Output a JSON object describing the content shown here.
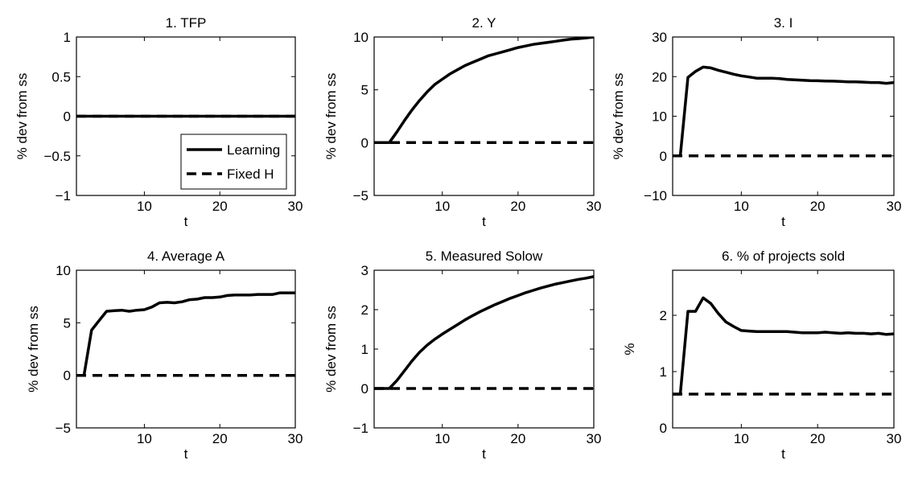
{
  "chart_data": [
    {
      "type": "line",
      "title": "1. TFP",
      "xlabel": "t",
      "ylabel": "% dev from ss",
      "xlim": [
        1,
        30
      ],
      "ylim": [
        -1,
        1
      ],
      "xticks": [
        10,
        20,
        30
      ],
      "yticks": [
        -1,
        -0.5,
        0,
        0.5,
        1
      ],
      "ytick_labels": [
        "−1",
        "−0.5",
        "0",
        "0.5",
        "1"
      ],
      "legend": {
        "position": "bottom-right",
        "entries": [
          "Learning",
          "Fixed H"
        ]
      },
      "series": [
        {
          "name": "Learning",
          "style": "solid",
          "x": [
            1,
            30
          ],
          "y": [
            0,
            0
          ]
        },
        {
          "name": "Fixed H",
          "style": "dashed",
          "x": [
            1,
            30
          ],
          "y": [
            0,
            0
          ]
        }
      ]
    },
    {
      "type": "line",
      "title": "2. Y",
      "xlabel": "t",
      "ylabel": "% dev from ss",
      "xlim": [
        1,
        30
      ],
      "ylim": [
        -5,
        10
      ],
      "xticks": [
        10,
        20,
        30
      ],
      "yticks": [
        -5,
        0,
        5,
        10
      ],
      "ytick_labels": [
        "−5",
        "0",
        "5",
        "10"
      ],
      "series": [
        {
          "name": "Learning",
          "style": "solid",
          "x": [
            1,
            2,
            3,
            4,
            5,
            6,
            7,
            8,
            9,
            10,
            11,
            12,
            13,
            14,
            15,
            16,
            17,
            18,
            19,
            20,
            21,
            22,
            23,
            24,
            25,
            26,
            27,
            28,
            29,
            30
          ],
          "y": [
            0,
            0,
            0,
            1.0,
            2.1,
            3.1,
            4.0,
            4.8,
            5.5,
            6.0,
            6.5,
            6.9,
            7.3,
            7.6,
            7.9,
            8.2,
            8.4,
            8.6,
            8.8,
            9.0,
            9.15,
            9.3,
            9.4,
            9.5,
            9.6,
            9.7,
            9.8,
            9.85,
            9.92,
            10.0
          ]
        },
        {
          "name": "Fixed H",
          "style": "dashed",
          "x": [
            1,
            30
          ],
          "y": [
            0,
            0
          ]
        }
      ]
    },
    {
      "type": "line",
      "title": "3. I",
      "xlabel": "t",
      "ylabel": "% dev from ss",
      "xlim": [
        1,
        30
      ],
      "ylim": [
        -10,
        30
      ],
      "xticks": [
        10,
        20,
        30
      ],
      "yticks": [
        -10,
        0,
        10,
        20,
        30
      ],
      "ytick_labels": [
        "−10",
        "0",
        "10",
        "20",
        "30"
      ],
      "series": [
        {
          "name": "Learning",
          "style": "solid",
          "x": [
            1,
            2,
            3,
            4,
            5,
            6,
            7,
            8,
            9,
            10,
            11,
            12,
            13,
            14,
            15,
            16,
            17,
            18,
            19,
            20,
            21,
            22,
            23,
            24,
            25,
            26,
            27,
            28,
            29,
            30
          ],
          "y": [
            0,
            0,
            19.8,
            21.3,
            22.4,
            22.2,
            21.6,
            21.1,
            20.6,
            20.2,
            19.9,
            19.6,
            19.6,
            19.6,
            19.5,
            19.3,
            19.2,
            19.1,
            19.0,
            18.95,
            18.9,
            18.85,
            18.8,
            18.7,
            18.7,
            18.6,
            18.5,
            18.5,
            18.3,
            18.5
          ]
        },
        {
          "name": "Fixed H",
          "style": "dashed",
          "x": [
            1,
            30
          ],
          "y": [
            0,
            0
          ]
        }
      ]
    },
    {
      "type": "line",
      "title": "4. Average A",
      "xlabel": "t",
      "ylabel": "% dev from ss",
      "xlim": [
        1,
        30
      ],
      "ylim": [
        -5,
        10
      ],
      "xticks": [
        10,
        20,
        30
      ],
      "yticks": [
        -5,
        0,
        5,
        10
      ],
      "ytick_labels": [
        "−5",
        "0",
        "5",
        "10"
      ],
      "series": [
        {
          "name": "Learning",
          "style": "solid",
          "x": [
            1,
            2,
            3,
            4,
            5,
            6,
            7,
            8,
            9,
            10,
            11,
            12,
            13,
            14,
            15,
            16,
            17,
            18,
            19,
            20,
            21,
            22,
            23,
            24,
            25,
            26,
            27,
            28,
            29,
            30
          ],
          "y": [
            0,
            0,
            4.3,
            5.2,
            6.1,
            6.15,
            6.2,
            6.1,
            6.2,
            6.25,
            6.5,
            6.9,
            6.95,
            6.9,
            7.0,
            7.2,
            7.25,
            7.4,
            7.4,
            7.45,
            7.6,
            7.65,
            7.65,
            7.65,
            7.7,
            7.7,
            7.7,
            7.85,
            7.85,
            7.85
          ]
        },
        {
          "name": "Fixed H",
          "style": "dashed",
          "x": [
            1,
            30
          ],
          "y": [
            0,
            0
          ]
        }
      ]
    },
    {
      "type": "line",
      "title": "5. Measured Solow",
      "xlabel": "t",
      "ylabel": "% dev from ss",
      "xlim": [
        1,
        30
      ],
      "ylim": [
        -1,
        3
      ],
      "xticks": [
        10,
        20,
        30
      ],
      "yticks": [
        -1,
        0,
        1,
        2,
        3
      ],
      "ytick_labels": [
        "−1",
        "0",
        "1",
        "2",
        "3"
      ],
      "series": [
        {
          "name": "Learning",
          "style": "solid",
          "x": [
            1,
            2,
            3,
            4,
            5,
            6,
            7,
            8,
            9,
            10,
            11,
            12,
            13,
            14,
            15,
            16,
            17,
            18,
            19,
            20,
            21,
            22,
            23,
            24,
            25,
            26,
            27,
            28,
            29,
            30
          ],
          "y": [
            0,
            0,
            0,
            0.2,
            0.45,
            0.7,
            0.92,
            1.1,
            1.25,
            1.38,
            1.5,
            1.62,
            1.74,
            1.85,
            1.95,
            2.04,
            2.13,
            2.21,
            2.29,
            2.36,
            2.43,
            2.49,
            2.55,
            2.6,
            2.65,
            2.69,
            2.73,
            2.77,
            2.8,
            2.84
          ]
        },
        {
          "name": "Fixed H",
          "style": "dashed",
          "x": [
            1,
            30
          ],
          "y": [
            0,
            0
          ]
        }
      ]
    },
    {
      "type": "line",
      "title": "6. % of projects sold",
      "xlabel": "t",
      "ylabel": "%",
      "xlim": [
        1,
        30
      ],
      "ylim": [
        0,
        2.8
      ],
      "xticks": [
        10,
        20,
        30
      ],
      "yticks": [
        0,
        1,
        2
      ],
      "ytick_labels": [
        "0",
        "1",
        "2"
      ],
      "series": [
        {
          "name": "Learning",
          "style": "solid",
          "x": [
            1,
            2,
            3,
            4,
            5,
            6,
            7,
            8,
            9,
            10,
            11,
            12,
            13,
            14,
            15,
            16,
            17,
            18,
            19,
            20,
            21,
            22,
            23,
            24,
            25,
            26,
            27,
            28,
            29,
            30
          ],
          "y": [
            0.6,
            0.6,
            2.07,
            2.07,
            2.31,
            2.21,
            2.03,
            1.88,
            1.8,
            1.73,
            1.72,
            1.71,
            1.71,
            1.71,
            1.71,
            1.71,
            1.7,
            1.69,
            1.69,
            1.69,
            1.7,
            1.69,
            1.68,
            1.69,
            1.68,
            1.68,
            1.67,
            1.68,
            1.66,
            1.67
          ]
        },
        {
          "name": "Fixed H",
          "style": "dashed",
          "x": [
            1,
            30
          ],
          "y": [
            0.6,
            0.6
          ]
        }
      ]
    }
  ]
}
